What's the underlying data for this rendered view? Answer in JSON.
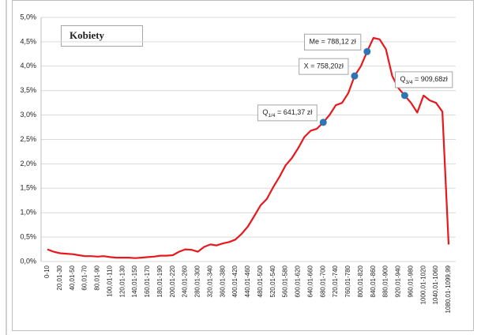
{
  "chart_data": {
    "type": "line",
    "title": "Kobiety",
    "categories": [
      "0-10",
      null,
      "20,01-30",
      null,
      "40,01-50",
      null,
      "60,01-70",
      null,
      "80,01-90",
      null,
      "100,01-110",
      null,
      "120,01-130",
      null,
      "140,01-150",
      null,
      "160,01-170",
      null,
      "180,01-190",
      null,
      "200,01-220",
      null,
      "240,01-260",
      null,
      "280,01-300",
      null,
      "320,01-340",
      null,
      "360,01-380",
      null,
      "400,01-420",
      null,
      "440,01-460",
      null,
      "480,01-500",
      null,
      "520,01-540",
      null,
      "560,01-580",
      null,
      "600,01-620",
      null,
      "640,01-660",
      null,
      "680,01-700",
      null,
      "720,01-740",
      null,
      "760,01-780",
      null,
      "800,01-820",
      null,
      "840,01-860",
      null,
      "880,01-900",
      null,
      "920,01-940",
      null,
      "960,01-980",
      null,
      "1000,01-1020",
      null,
      "1040,01-1060",
      null,
      "1080,01-1099,99"
    ],
    "series": [
      {
        "color": "#e8181c",
        "values": [
          0.25,
          0.2,
          0.17,
          0.16,
          0.15,
          0.13,
          0.11,
          0.11,
          0.1,
          0.11,
          0.09,
          0.08,
          0.08,
          0.08,
          0.07,
          0.08,
          0.09,
          0.1,
          0.12,
          0.12,
          0.13,
          0.2,
          0.25,
          0.24,
          0.2,
          0.3,
          0.35,
          0.33,
          0.37,
          0.4,
          0.45,
          0.57,
          0.72,
          0.93,
          1.15,
          1.28,
          1.52,
          1.73,
          1.97,
          2.12,
          2.32,
          2.55,
          2.68,
          2.72,
          2.85,
          3.0,
          3.2,
          3.25,
          3.45,
          3.8,
          4.0,
          4.3,
          4.58,
          4.55,
          4.35,
          3.8,
          3.55,
          3.4,
          3.25,
          3.05,
          3.4,
          3.3,
          3.25,
          3.07,
          0.35
        ]
      }
    ],
    "ylim": [
      0,
      5
    ],
    "yticks": [
      {
        "value": 0,
        "label": "0,0%"
      },
      {
        "value": 0.5,
        "label": "0,5%"
      },
      {
        "value": 1,
        "label": "1,0%"
      },
      {
        "value": 1.5,
        "label": "1,5%"
      },
      {
        "value": 2,
        "label": "2,0%"
      },
      {
        "value": 2.5,
        "label": "2,5%"
      },
      {
        "value": 3,
        "label": "3,0%"
      },
      {
        "value": 3.5,
        "label": "3,5%"
      },
      {
        "value": 4,
        "label": "4,0%"
      },
      {
        "value": 4.5,
        "label": "4,5%"
      },
      {
        "value": 5,
        "label": "5,0%"
      }
    ],
    "grid": true,
    "marker_color": "#2e75b6",
    "annotations": [
      {
        "text": "Q",
        "sub": "1/4",
        "rest": " = 641,37 zł",
        "at": 44
      },
      {
        "text": "X = 758,20zł",
        "at": 49
      },
      {
        "text": "Me = 788,12 zł",
        "at": 51
      },
      {
        "text": "Q",
        "sub": "3/4",
        "rest": " = 909,68zł",
        "at": 57
      }
    ]
  }
}
